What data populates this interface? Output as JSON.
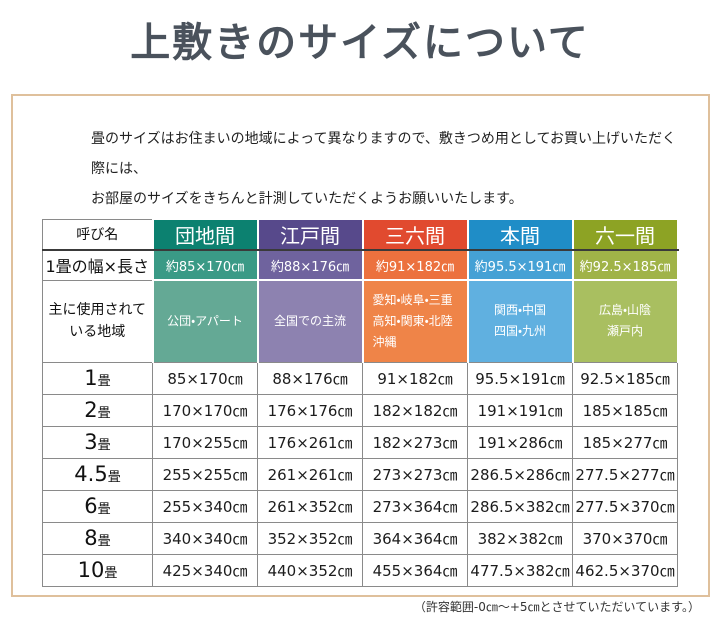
{
  "page": {
    "title": "上敷きのサイズについて"
  },
  "intro": {
    "line1": "畳のサイズはお住まいの地域によって異なりますので、敷きつめ用としてお買い上げいただく際には、",
    "line2": "お部屋のサイズをきちんと計測していただくようお願いいたします。"
  },
  "table": {
    "corner_header": "呼び名",
    "width_row_label": "1畳の幅×長さ",
    "region_row_label_line1": "主に使用されて",
    "region_row_label_line2": "いる地域",
    "columns": [
      {
        "name": "団地間",
        "width": "約85×170㎝",
        "region_lines": [
          "公団・アパート"
        ]
      },
      {
        "name": "江戸間",
        "width": "約88×176㎝",
        "region_lines": [
          "全国での主流"
        ]
      },
      {
        "name": "三六間",
        "width": "約91×182㎝",
        "region_lines": [
          "愛知・岐阜・三重",
          "高知・関東・北陸",
          "沖縄"
        ]
      },
      {
        "name": "本間",
        "width": "約95.5×191㎝",
        "region_lines": [
          "関西・中国",
          "四国・九州"
        ]
      },
      {
        "name": "六一間",
        "width": "約92.5×185㎝",
        "region_lines": [
          "広島・山陰",
          "瀬戸内"
        ]
      }
    ],
    "size_rows": [
      {
        "num": "1",
        "unit": "畳",
        "cells": [
          "85×170㎝",
          "88×176㎝",
          "91×182㎝",
          "95.5×191㎝",
          "92.5×185㎝"
        ]
      },
      {
        "num": "2",
        "unit": "畳",
        "cells": [
          "170×170㎝",
          "176×176㎝",
          "182×182㎝",
          "191×191㎝",
          "185×185㎝"
        ]
      },
      {
        "num": "3",
        "unit": "畳",
        "cells": [
          "170×255㎝",
          "176×261㎝",
          "182×273㎝",
          "191×286㎝",
          "185×277㎝"
        ]
      },
      {
        "num": "4.5",
        "unit": "畳",
        "cells": [
          "255×255㎝",
          "261×261㎝",
          "273×273㎝",
          "286.5×286㎝",
          "277.5×277㎝"
        ]
      },
      {
        "num": "6",
        "unit": "畳",
        "cells": [
          "255×340㎝",
          "261×352㎝",
          "273×364㎝",
          "286.5×382㎝",
          "277.5×370㎝"
        ]
      },
      {
        "num": "8",
        "unit": "畳",
        "cells": [
          "340×340㎝",
          "352×352㎝",
          "364×364㎝",
          "382×382㎝",
          "370×370㎝"
        ]
      },
      {
        "num": "10",
        "unit": "畳",
        "cells": [
          "425×340㎝",
          "440×352㎝",
          "455×364㎝",
          "477.5×382㎝",
          "462.5×370㎝"
        ]
      }
    ]
  },
  "footer": {
    "note": "（許容範囲-0㎝～+5㎝とさせていただいています。）"
  },
  "colors": {
    "frame_border": "#dfc09c",
    "title_text": "#4a525c",
    "grid_line": "#8a8a8a",
    "header_underline": "#3a3a3a",
    "danchi_header": "#0c8170",
    "danchi_mid": "#3a9a86",
    "danchi_light": "#64a995",
    "edo_header": "#57498b",
    "edo_mid": "#6f639e",
    "edo_light": "#8d82b0",
    "sanroku_header": "#e14a2f",
    "sanroku_mid": "#ec713e",
    "sanroku_light": "#ef8448",
    "honma_header": "#1f8dc7",
    "honma_mid": "#45a1d5",
    "honma_light": "#60b0e0",
    "rokuichi_header": "#8da324",
    "rokuichi_mid": "#a0b348",
    "rokuichi_light": "#a9bf60"
  }
}
